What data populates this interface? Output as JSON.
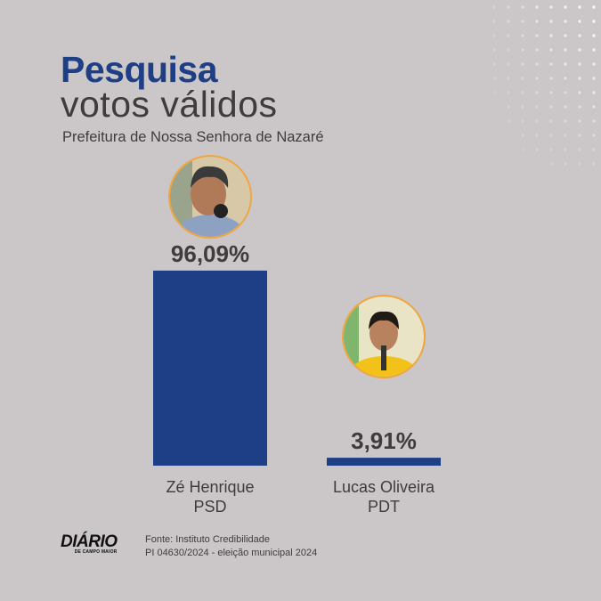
{
  "header": {
    "title": "Pesquisa",
    "subtitle": "votos válidos",
    "location": "Prefeitura de Nossa Senhora de Nazaré"
  },
  "colors": {
    "background": "#cbc7c8",
    "bar": "#1e3f85",
    "title": "#1e3f85",
    "text": "#3f3c3d",
    "photo_ring": "#f0a640"
  },
  "chart_data": {
    "type": "bar",
    "categories": [
      "Zé Henrique",
      "Lucas Oliveira"
    ],
    "parties": [
      "PSD",
      "PDT"
    ],
    "values": [
      96.09,
      3.91
    ],
    "value_labels": [
      "96,09%",
      "3,91%"
    ],
    "title": "",
    "xlabel": "",
    "ylabel": "",
    "ylim": [
      0,
      100
    ]
  },
  "footer": {
    "logo_text": "DIÁRIO",
    "logo_subtext": "DE CAMPO MAIOR",
    "source_line1": "Fonte: Instituto Credibilidade",
    "source_line2": "PI 04630/2024 - eleição municipal 2024"
  }
}
